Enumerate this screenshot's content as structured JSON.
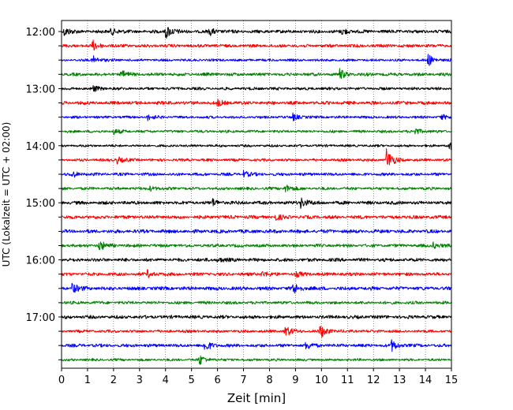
{
  "chart_data": {
    "type": "line",
    "title": "",
    "xlabel": "Zeit  [min]",
    "ylabel": "UTC (Lokalzeit = UTC + 02:00)",
    "xlim": [
      0,
      15
    ],
    "x_ticks": [
      "0",
      "1",
      "2",
      "3",
      "4",
      "5",
      "6",
      "7",
      "8",
      "9",
      "10",
      "11",
      "12",
      "13",
      "14",
      "15"
    ],
    "y_tick_labels": [
      "12:00",
      "13:00",
      "14:00",
      "15:00",
      "16:00",
      "17:00"
    ],
    "trace_interval_min": 15,
    "grid": "vertical dotted",
    "colors": [
      "#000000",
      "#ff0000",
      "#0000ff",
      "#008000"
    ],
    "traces": [
      {
        "start": "12:00",
        "color": "#000000",
        "events": [
          {
            "t": 0.1,
            "a": 0.9
          },
          {
            "t": 1.9,
            "a": 0.8
          },
          {
            "t": 4.0,
            "a": 1.6
          },
          {
            "t": 5.7,
            "a": 0.7
          },
          {
            "t": 10.8,
            "a": 0.7
          }
        ]
      },
      {
        "start": "12:15",
        "color": "#ff0000",
        "events": [
          {
            "t": 1.2,
            "a": 1.0
          }
        ]
      },
      {
        "start": "12:30",
        "color": "#0000ff",
        "events": [
          {
            "t": 1.2,
            "a": 0.9
          },
          {
            "t": 14.1,
            "a": 1.2
          }
        ]
      },
      {
        "start": "12:45",
        "color": "#008000",
        "events": [
          {
            "t": 2.3,
            "a": 0.7
          },
          {
            "t": 10.7,
            "a": 1.0
          }
        ]
      },
      {
        "start": "13:00",
        "color": "#000000",
        "events": [
          {
            "t": 1.2,
            "a": 0.6
          }
        ]
      },
      {
        "start": "13:15",
        "color": "#ff0000",
        "events": [
          {
            "t": 6.0,
            "a": 0.6
          }
        ]
      },
      {
        "start": "13:30",
        "color": "#0000ff",
        "events": [
          {
            "t": 3.3,
            "a": 0.6
          },
          {
            "t": 8.9,
            "a": 0.7
          },
          {
            "t": 14.6,
            "a": 0.5
          }
        ]
      },
      {
        "start": "13:45",
        "color": "#008000",
        "events": [
          {
            "t": 2.0,
            "a": 0.5
          },
          {
            "t": 13.6,
            "a": 0.7
          }
        ]
      },
      {
        "start": "14:00",
        "color": "#000000",
        "events": [
          {
            "t": 14.9,
            "a": 0.9
          }
        ]
      },
      {
        "start": "14:15",
        "color": "#ff0000",
        "events": [
          {
            "t": 2.1,
            "a": 0.9
          },
          {
            "t": 12.5,
            "a": 2.4
          }
        ]
      },
      {
        "start": "14:30",
        "color": "#0000ff",
        "events": [
          {
            "t": 0.4,
            "a": 0.6
          },
          {
            "t": 7.0,
            "a": 0.6
          }
        ]
      },
      {
        "start": "14:45",
        "color": "#008000",
        "events": [
          {
            "t": 8.6,
            "a": 0.9
          },
          {
            "t": 3.4,
            "a": 0.5
          }
        ]
      },
      {
        "start": "15:00",
        "color": "#000000",
        "events": [
          {
            "t": 5.8,
            "a": 0.7
          },
          {
            "t": 9.2,
            "a": 1.1
          }
        ]
      },
      {
        "start": "15:15",
        "color": "#ff0000",
        "events": [
          {
            "t": 8.2,
            "a": 0.6
          }
        ]
      },
      {
        "start": "15:30",
        "color": "#0000ff",
        "events": []
      },
      {
        "start": "15:45",
        "color": "#008000",
        "events": [
          {
            "t": 1.45,
            "a": 1.1
          },
          {
            "t": 14.3,
            "a": 0.6
          }
        ]
      },
      {
        "start": "16:00",
        "color": "#000000",
        "events": [
          {
            "t": 6.0,
            "a": 0.5
          }
        ]
      },
      {
        "start": "16:15",
        "color": "#ff0000",
        "events": [
          {
            "t": 3.3,
            "a": 0.7
          },
          {
            "t": 7.7,
            "a": 0.6
          },
          {
            "t": 9.0,
            "a": 0.5
          }
        ]
      },
      {
        "start": "16:30",
        "color": "#0000ff",
        "events": [
          {
            "t": 0.4,
            "a": 1.0
          },
          {
            "t": 8.9,
            "a": 1.2
          }
        ]
      },
      {
        "start": "16:45",
        "color": "#008000",
        "events": []
      },
      {
        "start": "17:00",
        "color": "#000000",
        "events": []
      },
      {
        "start": "17:15",
        "color": "#ff0000",
        "events": [
          {
            "t": 8.6,
            "a": 1.2
          },
          {
            "t": 9.95,
            "a": 1.5
          }
        ]
      },
      {
        "start": "17:30",
        "color": "#0000ff",
        "events": [
          {
            "t": 5.5,
            "a": 1.2
          },
          {
            "t": 9.4,
            "a": 0.8
          },
          {
            "t": 12.7,
            "a": 1.1
          }
        ]
      },
      {
        "start": "17:45",
        "color": "#008000",
        "events": [
          {
            "t": 5.3,
            "a": 1.1
          }
        ]
      }
    ]
  }
}
